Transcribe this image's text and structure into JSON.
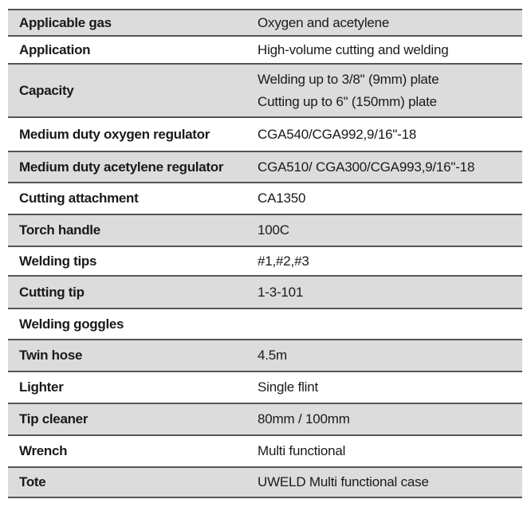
{
  "specs": [
    {
      "label": "Applicable gas",
      "value": [
        "Oxygen and acetylene"
      ]
    },
    {
      "label": "Application",
      "value": [
        "High-volume cutting and welding"
      ]
    },
    {
      "label": "Capacity",
      "value": [
        "Welding up to 3/8\" (9mm) plate",
        "Cutting up to 6\" (150mm) plate"
      ]
    },
    {
      "label": "Medium duty oxygen regulator",
      "value": [
        "CGA540/CGA992,9/16\"-18"
      ]
    },
    {
      "label": "Medium duty acetylene regulator",
      "value": [
        "CGA510/ CGA300/CGA993,9/16\"-18"
      ]
    },
    {
      "label": "Cutting attachment",
      "value": [
        "CA1350"
      ]
    },
    {
      "label": "Torch handle",
      "value": [
        "100C"
      ]
    },
    {
      "label": "Welding tips",
      "value": [
        "#1,#2,#3"
      ]
    },
    {
      "label": "Cutting tip",
      "value": [
        "1-3-101"
      ]
    },
    {
      "label": "Welding goggles",
      "value": []
    },
    {
      "label": "Twin hose",
      "value": [
        "4.5m"
      ]
    },
    {
      "label": "Lighter",
      "value": [
        "Single flint"
      ]
    },
    {
      "label": "Tip cleaner",
      "value": [
        "80mm / 100mm"
      ]
    },
    {
      "label": "Wrench",
      "value": [
        "Multi functional"
      ]
    },
    {
      "label": "Tote",
      "value": [
        "UWELD Multi functional case"
      ]
    }
  ],
  "colors": {
    "shade": "#dcdcdc",
    "rule": "#555555"
  }
}
